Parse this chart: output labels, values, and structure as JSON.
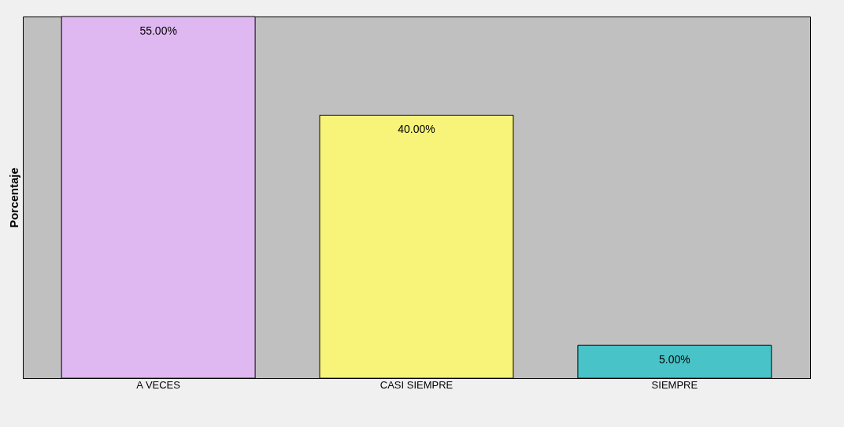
{
  "chart_data": {
    "type": "bar",
    "ylabel": "Porcentaje",
    "categories": [
      "A VECES",
      "CASI SIEMPRE",
      "SIEMPRE"
    ],
    "values": [
      55,
      40,
      5
    ],
    "colors": [
      "#dfb8f2",
      "#f8f47a",
      "#48c4c8"
    ],
    "value_labels": [
      "55.00%",
      "40.00%",
      "5.00%"
    ],
    "tick_labels": "x"
  }
}
